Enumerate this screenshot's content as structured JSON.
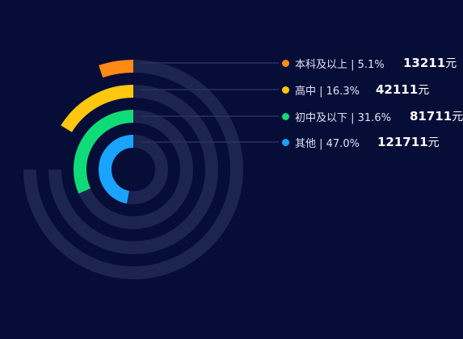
{
  "chart_data": {
    "type": "radial-bar",
    "max_value": 100,
    "items": [
      {
        "name": "本科及以上",
        "percent": 5.1,
        "percent_text": "5.1%",
        "value": 13211,
        "value_text": "13211",
        "unit": "元",
        "color": "#ff8a14"
      },
      {
        "name": "高中",
        "percent": 16.3,
        "percent_text": "16.3%",
        "value": 42111,
        "value_text": "42111",
        "unit": "元",
        "color": "#ffc70f"
      },
      {
        "name": "初中及以下",
        "percent": 31.6,
        "percent_text": "31.6%",
        "value": 81711,
        "value_text": "81711",
        "unit": "元",
        "color": "#0fdb78"
      },
      {
        "name": "其他",
        "percent": 47.0,
        "percent_text": "47.0%",
        "value": 121711,
        "value_text": "121711",
        "unit": "元",
        "color": "#1aa3ff"
      }
    ],
    "colors": {
      "background": "#060d36",
      "track": "#1c2550",
      "leader": "#2a3262"
    }
  }
}
